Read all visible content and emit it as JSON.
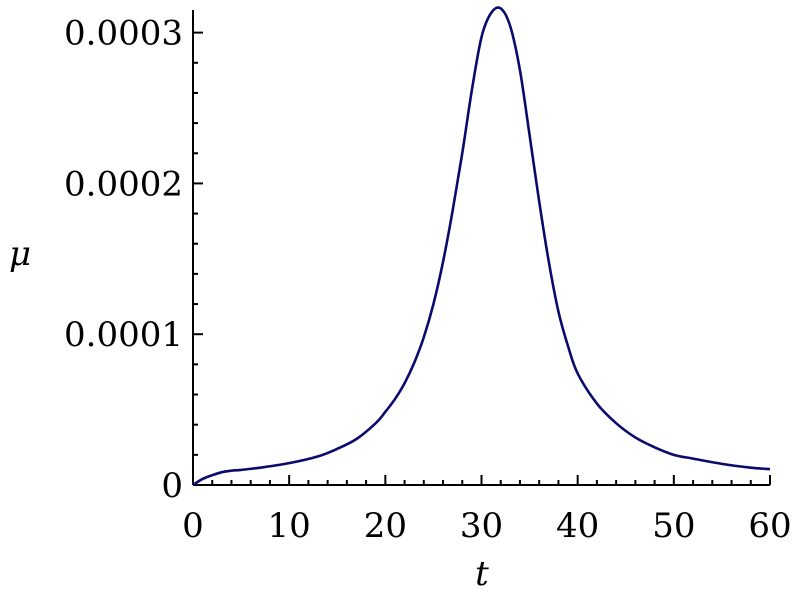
{
  "chart_data": {
    "type": "line",
    "title": "",
    "xlabel": "t",
    "ylabel": "μ",
    "xlim": [
      0,
      60
    ],
    "ylim": [
      0,
      0.000315
    ],
    "x_ticks": [
      0,
      10,
      20,
      30,
      40,
      50,
      60
    ],
    "x_tick_labels": [
      "0",
      "10",
      "20",
      "30",
      "40",
      "50",
      "60"
    ],
    "y_ticks": [
      0,
      0.0001,
      0.0002,
      0.0003
    ],
    "y_tick_labels": [
      "0",
      "0.0001",
      "0.0002",
      "0.0003"
    ],
    "grid": false,
    "line_color": "#0a0a6e",
    "series": [
      {
        "x": [
          0,
          1,
          2,
          3,
          4,
          5,
          7,
          10,
          13,
          15,
          17,
          19,
          20,
          21,
          22,
          23,
          24,
          25,
          26,
          27,
          28,
          29,
          30,
          31,
          32,
          33,
          34,
          35,
          36,
          37,
          38,
          39,
          40,
          42,
          44,
          46,
          48,
          50,
          52,
          55,
          58,
          60
        ],
        "y": [
          0,
          4e-06,
          6.5e-06,
          8.5e-06,
          9.5e-06,
          1e-05,
          1.15e-05,
          1.45e-05,
          1.9e-05,
          2.4e-05,
          3.05e-05,
          4.1e-05,
          4.85e-05,
          5.7e-05,
          6.75e-05,
          8.1e-05,
          9.8e-05,
          0.00012,
          0.000148,
          0.000182,
          0.00022,
          0.000262,
          0.000297,
          0.000313,
          0.000316,
          0.000304,
          0.000275,
          0.000232,
          0.000188,
          0.000148,
          0.000115,
          9.2e-05,
          7.4e-05,
          5.4e-05,
          4.1e-05,
          3.15e-05,
          2.5e-05,
          2e-05,
          1.75e-05,
          1.4e-05,
          1.15e-05,
          1.05e-05
        ]
      }
    ]
  }
}
